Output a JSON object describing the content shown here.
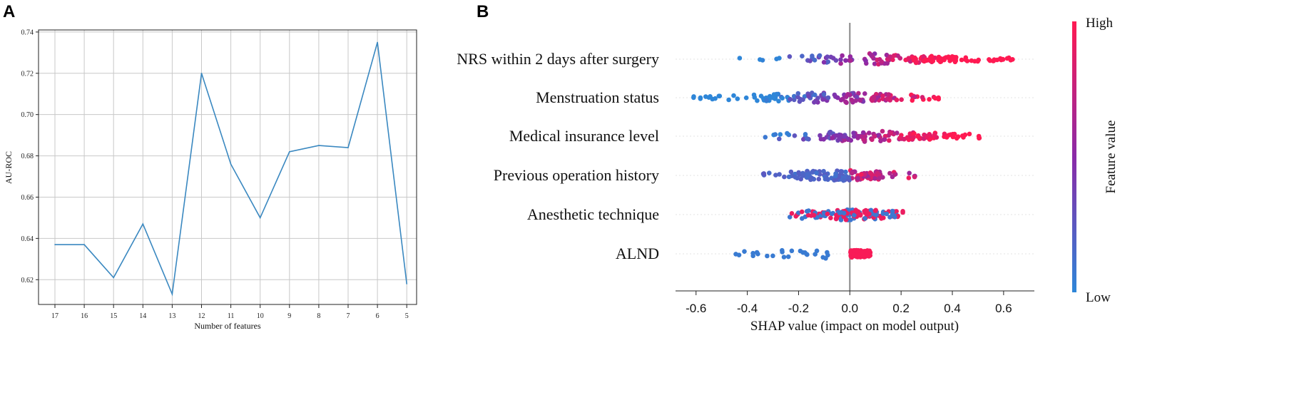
{
  "panels": {
    "a_letter": "A",
    "b_letter": "B"
  },
  "colors": {
    "line": "#3a88c0",
    "grid": "#c8c8c8",
    "low": "#2e86d8",
    "mid": "#8a2aa8",
    "high": "#ff1a52",
    "zero_line": "#888888"
  },
  "chart_data": [
    {
      "type": "line",
      "title": "",
      "xlabel": "Number of features",
      "ylabel": "AU-ROC",
      "x": [
        "17",
        "16",
        "15",
        "14",
        "13",
        "12",
        "11",
        "10",
        "9",
        "8",
        "7",
        "6",
        "5"
      ],
      "values": [
        0.637,
        0.637,
        0.621,
        0.647,
        0.613,
        0.72,
        0.676,
        0.65,
        0.682,
        0.685,
        0.684,
        0.735,
        0.618
      ],
      "ylim": [
        0.608,
        0.741
      ],
      "yticks": [
        "0.62",
        "0.64",
        "0.66",
        "0.68",
        "0.70",
        "0.72",
        "0.74"
      ],
      "grid": true
    },
    {
      "type": "scatter",
      "subtype": "shap_beeswarm",
      "xlabel": "SHAP value (impact on model output)",
      "xlim": [
        -0.68,
        0.72
      ],
      "xticks": [
        "-0.6",
        "-0.4",
        "-0.2",
        "0.0",
        "0.2",
        "0.4",
        "0.6"
      ],
      "colorbar": {
        "high_label": "High",
        "low_label": "Low",
        "title": "Feature value"
      },
      "features": [
        {
          "name": "NRS within 2 days after surgery",
          "min": -0.43,
          "max": 0.67
        },
        {
          "name": "Menstruation status",
          "min": -0.61,
          "max": 0.38
        },
        {
          "name": "Medical insurance level",
          "min": -0.34,
          "max": 0.52
        },
        {
          "name": "Previous operation history",
          "min": -0.36,
          "max": 0.26
        },
        {
          "name": "Anesthetic technique",
          "min": -0.24,
          "max": 0.21
        },
        {
          "name": "ALND",
          "min": -0.45,
          "max": 0.08
        }
      ]
    }
  ]
}
